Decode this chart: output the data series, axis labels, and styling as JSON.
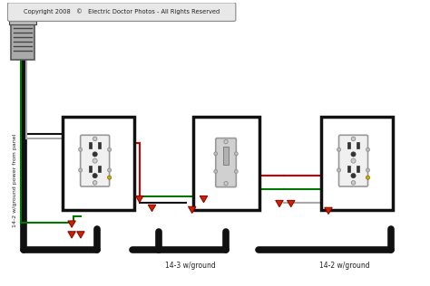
{
  "bg_color": "#ffffff",
  "copyright_text": "Copyright 2008   ©   Electric Doctor Photos - All Rights Reserved",
  "copyright_box_color": "#e8e8e8",
  "copyright_border_color": "#888888",
  "label_14_2_panel": "14-2 w/ground power from panel",
  "label_14_3": "14-3 w/ground",
  "label_14_2_right": "14-2 w/ground",
  "wire_black": "#111111",
  "wire_white": "#cccccc",
  "wire_red": "#cc0000",
  "wire_green": "#007700",
  "connector_color": "#cc2200",
  "box_color": "#111111",
  "outlet_body": "#f0f0f0",
  "outlet_border": "#888888",
  "switch_body": "#c0c0c0",
  "panel_color": "#888888"
}
